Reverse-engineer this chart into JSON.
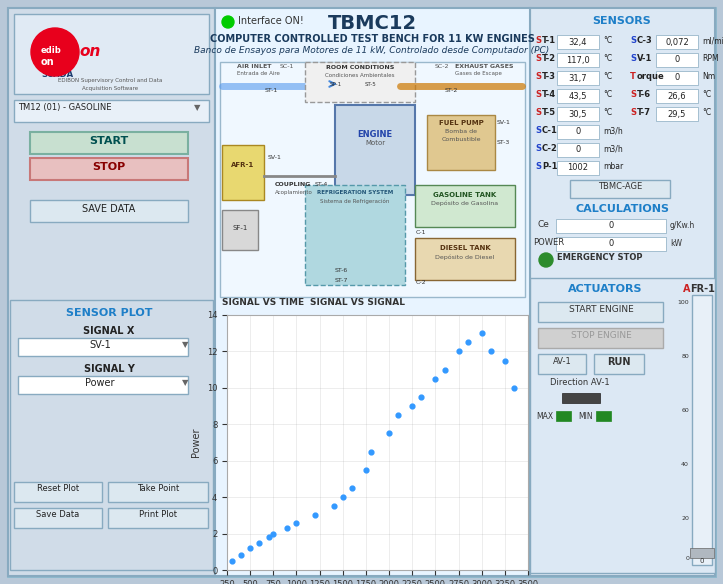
{
  "title": "TBMC12",
  "subtitle1": "COMPUTER CONTROLLED TEST BENCH FOR 11 KW ENGINES",
  "subtitle2": "Banco de Ensayos para Motores de 11 kW, Controlado desde Computador (PC)",
  "bg_outer": "#c8d4de",
  "bg_main": "#d0dce8",
  "bg_center": "#e8f0f8",
  "bg_right": "#dce8f4",
  "bg_left": "#d0dce8",
  "bg_white": "#ffffff",
  "sensors_title": "SENSORS",
  "sensors": [
    {
      "label": "ST-1",
      "value": "32,4",
      "unit": "°C",
      "label2": "SC-3",
      "value2": "0,072",
      "unit2": "ml/min"
    },
    {
      "label": "ST-2",
      "value": "117,0",
      "unit": "°C",
      "label2": "SV-1",
      "value2": "0",
      "unit2": "RPM"
    },
    {
      "label": "ST-3",
      "value": "31,7",
      "unit": "°C",
      "label2": "Torque",
      "value2": "0",
      "unit2": "Nm"
    },
    {
      "label": "ST-4",
      "value": "43,5",
      "unit": "°C",
      "label2": "ST-6",
      "value2": "26,6",
      "unit2": "°C"
    },
    {
      "label": "ST-5",
      "value": "30,5",
      "unit": "°C",
      "label2": "ST-7",
      "value2": "29,5",
      "unit2": "°C"
    }
  ],
  "sensors2": [
    {
      "label": "SC-1",
      "value": "0",
      "unit": "m3/h"
    },
    {
      "label": "SC-2",
      "value": "0",
      "unit": "m3/h"
    },
    {
      "label": "SP-1",
      "value": "1002",
      "unit": "mbar"
    }
  ],
  "calc_title": "CALCULATIONS",
  "calc_ce_label": "Ce",
  "calc_ce_value": "0",
  "calc_ce_unit": "g/Kw.h",
  "calc_power_label": "POWER",
  "calc_power_value": "0",
  "calc_power_unit": "kW",
  "actuators_title": "ACTUATORS",
  "afr_label": "AFR-1",
  "sensor_plot_title": "SENSOR PLOT",
  "signal_x_label": "SIGNAL X",
  "signal_x_value": "SV-1",
  "signal_y_label": "SIGNAL Y",
  "signal_y_value": "Power",
  "scatter_x": [
    300,
    400,
    500,
    600,
    700,
    750,
    900,
    1000,
    1200,
    1400,
    1500,
    1600,
    1750,
    1800,
    2000,
    2100,
    2250,
    2350,
    2500,
    2600,
    2750,
    2850,
    3000,
    3100,
    3250,
    3350
  ],
  "scatter_y": [
    0.5,
    0.8,
    1.2,
    1.5,
    1.8,
    2.0,
    2.3,
    2.6,
    3.0,
    3.5,
    4.0,
    4.5,
    5.5,
    6.5,
    7.5,
    8.5,
    9.0,
    9.5,
    10.5,
    11.0,
    12.0,
    12.5,
    13.0,
    12.0,
    11.5,
    10.0
  ],
  "scatter_color": "#3399ff",
  "xlabel": "SV-1",
  "ylabel": "Power",
  "xlim": [
    250,
    3500
  ],
  "ylim": [
    0,
    14
  ],
  "xticks": [
    250,
    500,
    750,
    1000,
    1250,
    1500,
    1750,
    2000,
    2250,
    2500,
    2750,
    3000,
    3250,
    3500
  ],
  "yticks": [
    0,
    2,
    4,
    6,
    8,
    10,
    12,
    14
  ],
  "tm12_label": "TM12 (01) - GASOLINE",
  "interface_label": "Interface ON!",
  "interface_color": "#00cc00",
  "edibon_red": "#e8001c",
  "blue_accent": "#1e7fc8",
  "dark_blue": "#1a3a5c",
  "emergency_color": "#2d8c2d",
  "signal_vs_time": "SIGNAL VS TIME",
  "signal_vs_signal": "SIGNAL VS SIGNAL"
}
